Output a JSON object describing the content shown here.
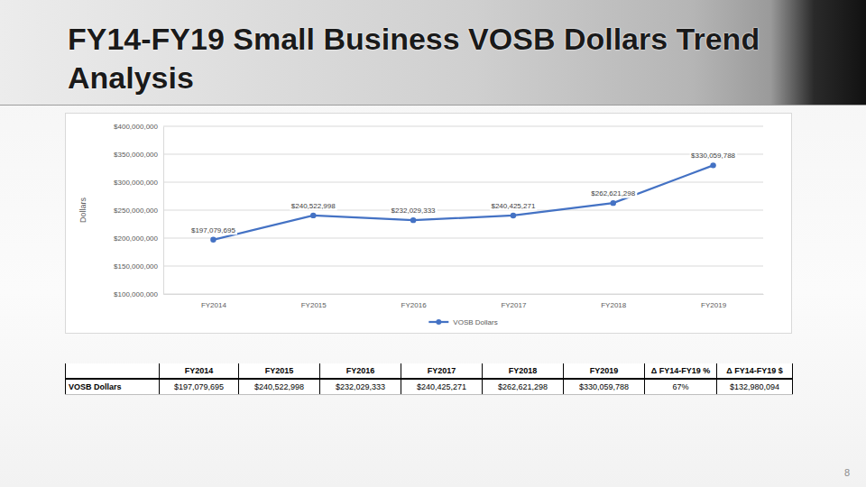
{
  "slide": {
    "title": "FY14-FY19 Small Business VOSB Dollars Trend Analysis",
    "page_number": "8"
  },
  "chart_data": {
    "type": "line",
    "y_label": "Dollars",
    "categories": [
      "FY2014",
      "FY2015",
      "FY2016",
      "FY2017",
      "FY2018",
      "FY2019"
    ],
    "series": [
      {
        "name": "VOSB Dollars",
        "color": "#4472c4",
        "marker": "circle",
        "values": [
          197079695,
          240522998,
          232029333,
          240425271,
          262621298,
          330059788
        ],
        "value_labels": [
          "$197,079,695",
          "$240,522,998",
          "$232,029,333",
          "$240,425,271",
          "$262,621,298",
          "$330,059,788"
        ]
      }
    ],
    "ylim": [
      100000000,
      400000000
    ],
    "yticks": [
      {
        "value": 100000000,
        "label": "$100,000,000"
      },
      {
        "value": 150000000,
        "label": "$150,000,000"
      },
      {
        "value": 200000000,
        "label": "$200,000,000"
      },
      {
        "value": 250000000,
        "label": "$250,000,000"
      },
      {
        "value": 300000000,
        "label": "$300,000,000"
      },
      {
        "value": 350000000,
        "label": "$350,000,000"
      },
      {
        "value": 400000000,
        "label": "$400,000,000"
      }
    ],
    "grid": true,
    "legend": "bottom",
    "data_labels": true
  },
  "table": {
    "columns": [
      "FY2014",
      "FY2015",
      "FY2016",
      "FY2017",
      "FY2018",
      "FY2019",
      "Δ FY14-FY19 %",
      "Δ FY14-FY19 $"
    ],
    "rows": [
      {
        "label": "VOSB Dollars",
        "cells": [
          "$197,079,695",
          "$240,522,998",
          "$232,029,333",
          "$240,425,271",
          "$262,621,298",
          "$330,059,788",
          "67%",
          "$132,980,094"
        ]
      }
    ]
  }
}
